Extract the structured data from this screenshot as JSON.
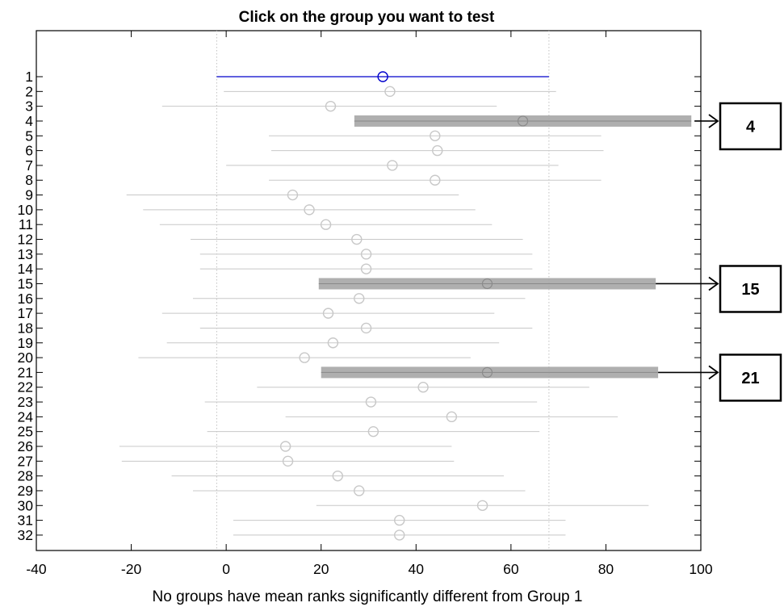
{
  "chart_data": {
    "type": "interval",
    "title": "Click on the group you want to test",
    "xlabel": "No groups have mean ranks significantly different from Group 1",
    "ylabel": "",
    "xlim": [
      -40,
      100
    ],
    "xticks": [
      -40,
      -20,
      0,
      20,
      40,
      60,
      80,
      100
    ],
    "groups": [
      {
        "label": "1",
        "mean": 33,
        "low": -2,
        "high": 68,
        "selected": true
      },
      {
        "label": "2",
        "mean": 34.5,
        "low": -0.5,
        "high": 69.5
      },
      {
        "label": "3",
        "mean": 22,
        "low": -13.5,
        "high": 57
      },
      {
        "label": "4",
        "mean": 62.5,
        "low": 27,
        "high": 98,
        "highlighted": true
      },
      {
        "label": "5",
        "mean": 44,
        "low": 9,
        "high": 79
      },
      {
        "label": "6",
        "mean": 44.5,
        "low": 9.5,
        "high": 79.5
      },
      {
        "label": "7",
        "mean": 35,
        "low": 0,
        "high": 70
      },
      {
        "label": "8",
        "mean": 44,
        "low": 9,
        "high": 79
      },
      {
        "label": "9",
        "mean": 14,
        "low": -21,
        "high": 49
      },
      {
        "label": "10",
        "mean": 17.5,
        "low": -17.5,
        "high": 52.5
      },
      {
        "label": "11",
        "mean": 21,
        "low": -14,
        "high": 56
      },
      {
        "label": "12",
        "mean": 27.5,
        "low": -7.5,
        "high": 62.5
      },
      {
        "label": "13",
        "mean": 29.5,
        "low": -5.5,
        "high": 64.5
      },
      {
        "label": "14",
        "mean": 29.5,
        "low": -5.5,
        "high": 64.5
      },
      {
        "label": "15",
        "mean": 55,
        "low": 19.5,
        "high": 90.5,
        "highlighted": true
      },
      {
        "label": "16",
        "mean": 28,
        "low": -7,
        "high": 63
      },
      {
        "label": "17",
        "mean": 21.5,
        "low": -13.5,
        "high": 56.5
      },
      {
        "label": "18",
        "mean": 29.5,
        "low": -5.5,
        "high": 64.5
      },
      {
        "label": "19",
        "mean": 22.5,
        "low": -12.5,
        "high": 57.5
      },
      {
        "label": "20",
        "mean": 16.5,
        "low": -18.5,
        "high": 51.5
      },
      {
        "label": "21",
        "mean": 55,
        "low": 20,
        "high": 91,
        "highlighted": true
      },
      {
        "label": "22",
        "mean": 41.5,
        "low": 6.5,
        "high": 76.5
      },
      {
        "label": "23",
        "mean": 30.5,
        "low": -4.5,
        "high": 65.5
      },
      {
        "label": "24",
        "mean": 47.5,
        "low": 12.5,
        "high": 82.5
      },
      {
        "label": "25",
        "mean": 31,
        "low": -4,
        "high": 66
      },
      {
        "label": "26",
        "mean": 12.5,
        "low": -22.5,
        "high": 47.5
      },
      {
        "label": "27",
        "mean": 13,
        "low": -22,
        "high": 48
      },
      {
        "label": "28",
        "mean": 23.5,
        "low": -11.5,
        "high": 58.5
      },
      {
        "label": "29",
        "mean": 28,
        "low": -7,
        "high": 63
      },
      {
        "label": "30",
        "mean": 54,
        "low": 19,
        "high": 89
      },
      {
        "label": "31",
        "mean": 36.5,
        "low": 1.5,
        "high": 71.5
      },
      {
        "label": "32",
        "mean": 36.5,
        "low": 1.5,
        "high": 71.5
      }
    ],
    "reference_lines": [
      -2,
      68
    ],
    "callouts": [
      {
        "group": "4",
        "label": "4"
      },
      {
        "group": "15",
        "label": "15"
      },
      {
        "group": "21",
        "label": "21"
      }
    ],
    "grid": false,
    "colors": {
      "selected": "#0000cc",
      "normal": "#c8c8c8",
      "highlight": "#a6a6a6",
      "reference": "#c0c0c0",
      "axis": "#000000"
    }
  }
}
